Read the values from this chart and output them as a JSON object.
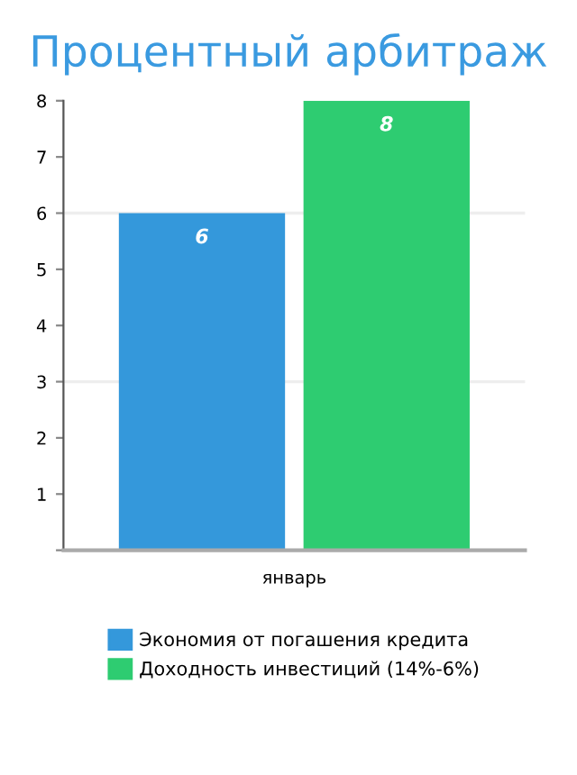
{
  "chart_data": {
    "type": "bar",
    "title": "Процентный арбитраж",
    "categories": [
      "январь"
    ],
    "series": [
      {
        "name": "Экономия от погашения кредита",
        "color": "#3498db",
        "values": [
          6
        ]
      },
      {
        "name": "Доходность инвестиций (14%-6%)",
        "color": "#2ecc71",
        "values": [
          8
        ]
      }
    ],
    "ylim": [
      0,
      8
    ],
    "yticks": [
      {
        "value": 0,
        "label": null
      },
      1,
      2,
      3,
      4,
      5,
      6,
      7,
      8
    ],
    "ref_lines": [
      {
        "axis": "y",
        "value": 3,
        "color": "#eeeeee"
      },
      {
        "axis": "y",
        "value": 6,
        "color": "#eeeeee"
      }
    ],
    "grid": false,
    "legend": "bottom",
    "data_labels": true
  }
}
